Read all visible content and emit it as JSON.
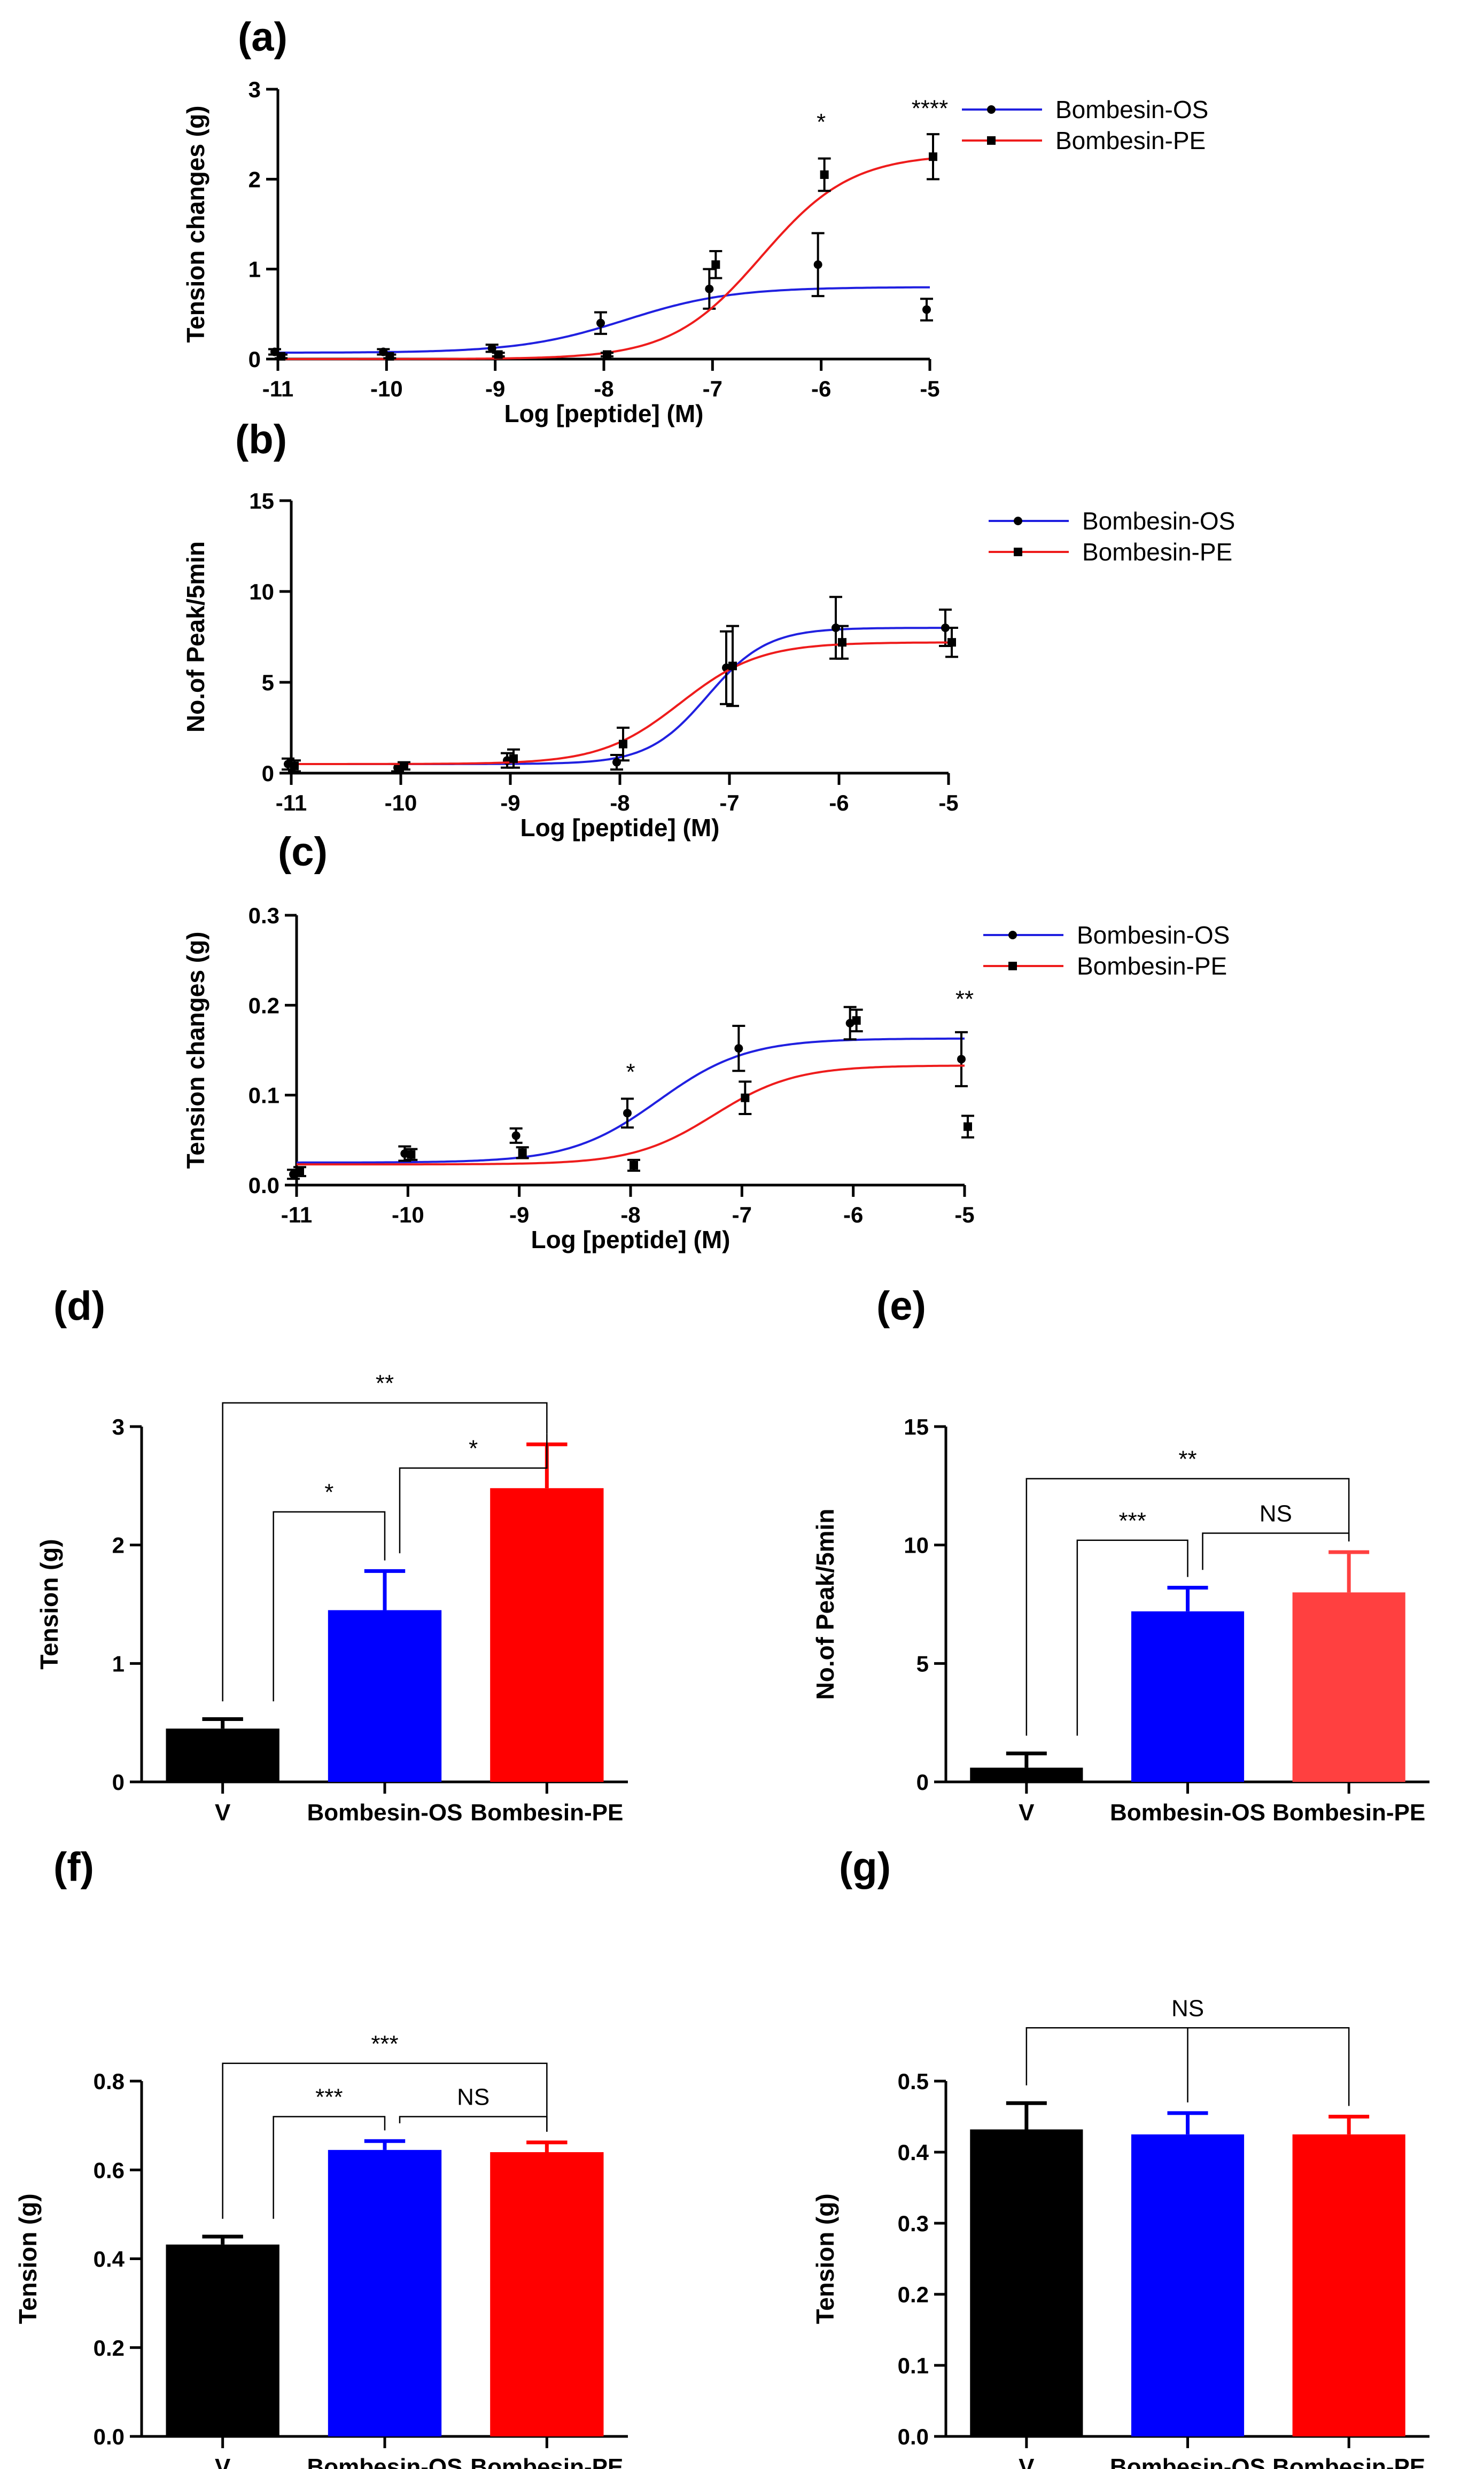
{
  "chart_data": [
    {
      "panel": "(a)",
      "type": "line",
      "xlabel": "Log [peptide] (M)",
      "ylabel": "Tension changes (g)",
      "xlim": [
        -11,
        -5
      ],
      "ylim": [
        0,
        3
      ],
      "xticks": [
        "-11",
        "-10",
        "-9",
        "-8",
        "-7",
        "-6",
        "-5"
      ],
      "yticks": [
        "0",
        "1",
        "2",
        "3"
      ],
      "legend": [
        "Bombesin-OS",
        "Bombesin-PE"
      ],
      "series": [
        {
          "name": "Bombesin-OS",
          "color": "#2020e0",
          "x": [
            -11,
            -10,
            -9,
            -8,
            -7,
            -6,
            -5
          ],
          "y": [
            0.08,
            0.08,
            0.12,
            0.4,
            0.78,
            1.05,
            0.55
          ],
          "err": [
            0.03,
            0.03,
            0.04,
            0.12,
            0.22,
            0.35,
            0.12
          ],
          "fit": {
            "bottom": 0.07,
            "top": 0.8,
            "logEC50": -7.8,
            "hill": 0.9
          }
        },
        {
          "name": "Bombesin-PE",
          "color": "#ee1c1c",
          "x": [
            -11,
            -10,
            -9,
            -8,
            -7,
            -6,
            -5
          ],
          "y": [
            0.03,
            0.03,
            0.05,
            0.05,
            1.05,
            2.05,
            2.25
          ],
          "err": [
            0.02,
            0.02,
            0.02,
            0.02,
            0.15,
            0.18,
            0.25
          ],
          "fit": {
            "bottom": 0.0,
            "top": 2.28,
            "logEC50": -6.55,
            "hill": 1.05
          }
        }
      ],
      "annotations": [
        {
          "x": -6,
          "y": 2.55,
          "text": "*"
        },
        {
          "x": -5.0,
          "y": 2.7,
          "text": "****"
        }
      ]
    },
    {
      "panel": "(b)",
      "type": "line",
      "xlabel": "Log [peptide] (M)",
      "ylabel": "No.of Peak/5min",
      "xlim": [
        -11,
        -5
      ],
      "ylim": [
        0,
        15
      ],
      "xticks": [
        "-11",
        "-10",
        "-9",
        "-8",
        "-7",
        "-6",
        "-5"
      ],
      "yticks": [
        "0",
        "5",
        "10",
        "15"
      ],
      "legend": [
        "Bombesin-OS",
        "Bombesin-PE"
      ],
      "series": [
        {
          "name": "Bombesin-OS",
          "color": "#2020e0",
          "x": [
            -11,
            -10,
            -9,
            -8,
            -7,
            -6,
            -5
          ],
          "y": [
            0.5,
            0.3,
            0.7,
            0.6,
            5.8,
            8.0,
            8.0
          ],
          "err": [
            0.3,
            0.2,
            0.4,
            0.4,
            2.0,
            1.7,
            1.0
          ],
          "fit": {
            "bottom": 0.5,
            "top": 8.0,
            "logEC50": -7.2,
            "hill": 1.6
          }
        },
        {
          "name": "Bombesin-PE",
          "color": "#ee1c1c",
          "x": [
            -11,
            -10,
            -9,
            -8,
            -7,
            -6,
            -5
          ],
          "y": [
            0.4,
            0.4,
            0.8,
            1.6,
            5.9,
            7.2,
            7.2
          ],
          "err": [
            0.3,
            0.2,
            0.5,
            0.9,
            2.2,
            0.9,
            0.8
          ],
          "fit": {
            "bottom": 0.5,
            "top": 7.2,
            "logEC50": -7.45,
            "hill": 1.2
          }
        }
      ],
      "annotations": []
    },
    {
      "panel": "(c)",
      "type": "line",
      "xlabel": "Log [peptide] (M)",
      "ylabel": "Tension changes (g)",
      "xlim": [
        -11,
        -5
      ],
      "ylim": [
        0,
        0.3
      ],
      "xticks": [
        "-11",
        "-10",
        "-9",
        "-8",
        "-7",
        "-6",
        "-5"
      ],
      "yticks": [
        "0.0",
        "0.1",
        "0.2",
        "0.3"
      ],
      "legend": [
        "Bombesin-OS",
        "Bombesin-PE"
      ],
      "series": [
        {
          "name": "Bombesin-OS",
          "color": "#2020e0",
          "x": [
            -11,
            -10,
            -9,
            -8,
            -7,
            -6,
            -5
          ],
          "y": [
            0.012,
            0.035,
            0.055,
            0.08,
            0.152,
            0.18,
            0.14
          ],
          "err": [
            0.005,
            0.008,
            0.008,
            0.016,
            0.025,
            0.018,
            0.03
          ],
          "fit": {
            "bottom": 0.025,
            "top": 0.163,
            "logEC50": -7.75,
            "hill": 1.1
          }
        },
        {
          "name": "Bombesin-PE",
          "color": "#ee1c1c",
          "x": [
            -11,
            -10,
            -9,
            -8,
            -7,
            -6,
            -5
          ],
          "y": [
            0.015,
            0.034,
            0.036,
            0.022,
            0.097,
            0.183,
            0.065
          ],
          "err": [
            0.005,
            0.006,
            0.006,
            0.006,
            0.018,
            0.012,
            0.012
          ],
          "fit": {
            "bottom": 0.023,
            "top": 0.133,
            "logEC50": -7.25,
            "hill": 1.2
          }
        }
      ],
      "annotations": [
        {
          "x": -8,
          "y": 0.117,
          "text": "*"
        },
        {
          "x": -5.0,
          "y": 0.198,
          "text": "**"
        }
      ]
    },
    {
      "panel": "(d)",
      "type": "bar",
      "ylabel": "Tension (g)",
      "ylim": [
        0,
        3
      ],
      "yticks": [
        "0",
        "1",
        "2",
        "3"
      ],
      "categories": [
        "V",
        "Bombesin-OS",
        "Bombesin-PE"
      ],
      "values": [
        0.45,
        1.45,
        2.48
      ],
      "errors": [
        0.08,
        0.33,
        0.37
      ],
      "colors": [
        "#000000",
        "#0000ff",
        "#ff0000"
      ],
      "brackets": [
        {
          "from": 1,
          "to": 2,
          "level": 2.65,
          "text": "*"
        },
        {
          "from": 0,
          "to": 1,
          "level": 2.28,
          "text": "*"
        },
        {
          "from": 0,
          "to": 2,
          "level": 3.2,
          "text": "**"
        }
      ]
    },
    {
      "panel": "(e)",
      "type": "bar",
      "ylabel": "No.of Peak/5min",
      "ylim": [
        0,
        15
      ],
      "yticks": [
        "0",
        "5",
        "10",
        "15"
      ],
      "categories": [
        "V",
        "Bombesin-OS",
        "Bombesin-PE"
      ],
      "values": [
        0.6,
        7.2,
        8.0
      ],
      "errors": [
        0.6,
        1.0,
        1.7
      ],
      "colors": [
        "#000000",
        "#0000ff",
        "#ff4040"
      ],
      "brackets": [
        {
          "from": 1,
          "to": 2,
          "level": 10.5,
          "text": "NS"
        },
        {
          "from": 0,
          "to": 1,
          "level": 10.2,
          "text": "***"
        },
        {
          "from": 0,
          "to": 2,
          "level": 12.8,
          "text": "**"
        }
      ]
    },
    {
      "panel": "(f)",
      "type": "bar",
      "ylabel": "Tension (g)",
      "ylim": [
        0,
        0.8
      ],
      "yticks": [
        "0.0",
        "0.2",
        "0.4",
        "0.6",
        "0.8"
      ],
      "categories": [
        "V",
        "Bombesin-OS",
        "Bombesin-PE"
      ],
      "values": [
        0.432,
        0.645,
        0.64
      ],
      "errors": [
        0.018,
        0.02,
        0.022
      ],
      "colors": [
        "#000000",
        "#0000ff",
        "#ff0000"
      ],
      "brackets": [
        {
          "from": 1,
          "to": 2,
          "level": 0.72,
          "text": "NS"
        },
        {
          "from": 0,
          "to": 1,
          "level": 0.72,
          "text": "***"
        },
        {
          "from": 0,
          "to": 2,
          "level": 0.84,
          "text": "***"
        }
      ]
    },
    {
      "panel": "(g)",
      "type": "bar",
      "ylabel": "Tension (g)",
      "ylim": [
        0,
        0.5
      ],
      "yticks": [
        "0.0",
        "0.1",
        "0.2",
        "0.3",
        "0.4",
        "0.5"
      ],
      "categories": [
        "V",
        "Bombesin-OS",
        "Bombesin-PE"
      ],
      "values": [
        0.432,
        0.425,
        0.425
      ],
      "errors": [
        0.037,
        0.03,
        0.025
      ],
      "colors": [
        "#000000",
        "#0000ff",
        "#ff0000"
      ],
      "brackets": [
        {
          "from": 0,
          "to": 2,
          "level": 0.575,
          "text": "NS",
          "mid": 1
        }
      ]
    }
  ]
}
